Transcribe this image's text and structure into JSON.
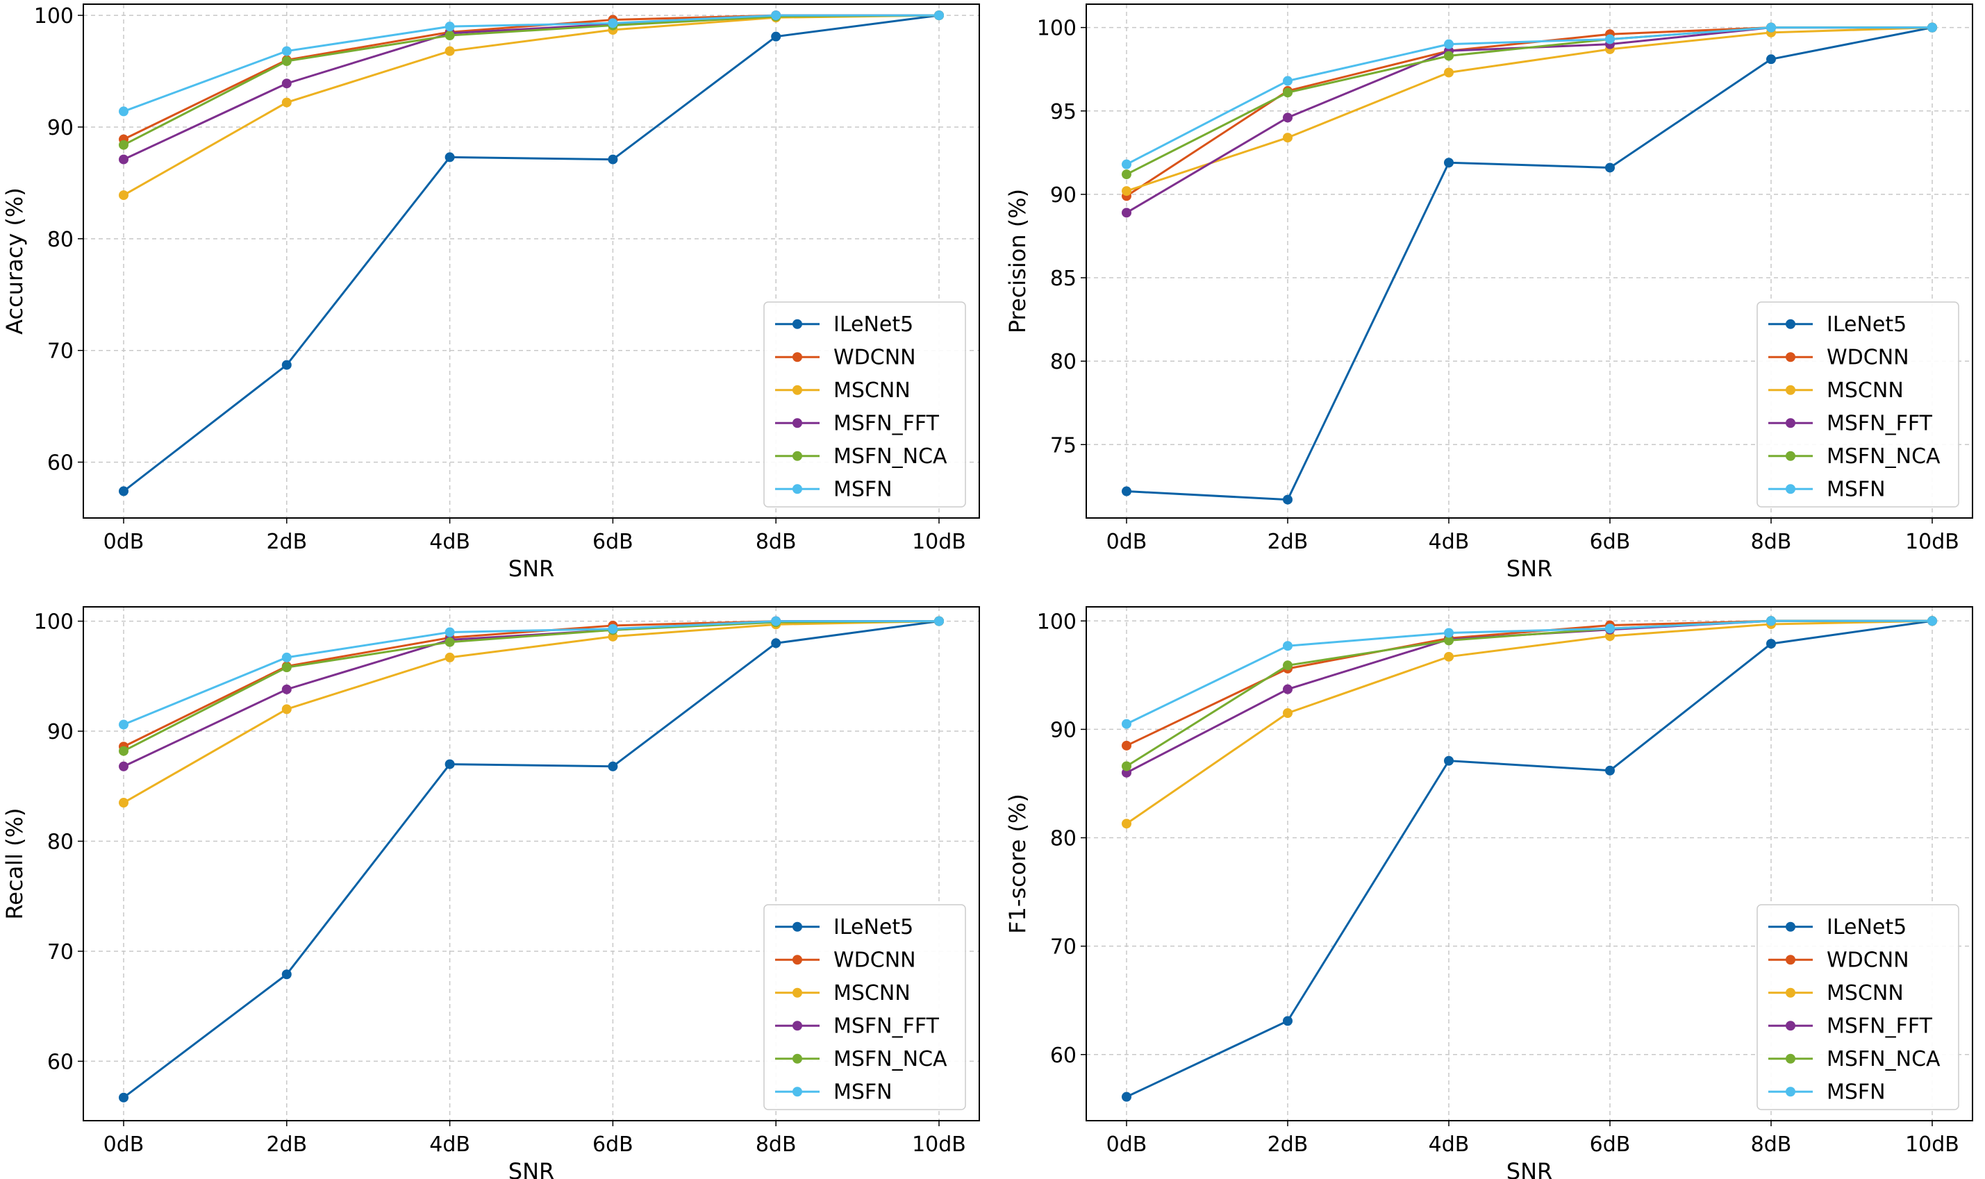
{
  "chart_data": [
    {
      "type": "line",
      "xlabel": "SNR",
      "ylabel": "Accuracy (%)",
      "categories": [
        "0dB",
        "2dB",
        "4dB",
        "6dB",
        "8dB",
        "10dB"
      ],
      "ylim": [
        55,
        101
      ],
      "yticks": [
        "60",
        "70",
        "80",
        "90",
        "100"
      ],
      "grid": true,
      "legend_position": "bottom-right",
      "series": [
        {
          "name": "ILeNet5",
          "color": "#0a62a6",
          "values": [
            57.4,
            68.7,
            87.3,
            87.1,
            98.1,
            100
          ]
        },
        {
          "name": "WDCNN",
          "color": "#d95319",
          "values": [
            88.9,
            96.0,
            98.5,
            99.6,
            100,
            100
          ]
        },
        {
          "name": "MSCNN",
          "color": "#edb120",
          "values": [
            83.9,
            92.2,
            96.8,
            98.7,
            99.8,
            100
          ]
        },
        {
          "name": "MSFN_FFT",
          "color": "#7e2f8e",
          "values": [
            87.1,
            93.9,
            98.4,
            99.2,
            100,
            100
          ]
        },
        {
          "name": "MSFN_NCA",
          "color": "#77ac30",
          "values": [
            88.4,
            95.9,
            98.2,
            99.1,
            99.9,
            100
          ]
        },
        {
          "name": "MSFN",
          "color": "#4dbeee",
          "values": [
            91.4,
            96.8,
            99.0,
            99.3,
            100,
            100
          ]
        }
      ]
    },
    {
      "type": "line",
      "xlabel": "SNR",
      "ylabel": "Precision (%)",
      "categories": [
        "0dB",
        "2dB",
        "4dB",
        "6dB",
        "8dB",
        "10dB"
      ],
      "ylim": [
        70.6,
        101.4
      ],
      "yticks": [
        "75",
        "80",
        "85",
        "90",
        "95",
        "100"
      ],
      "grid": true,
      "legend_position": "bottom-right",
      "series": [
        {
          "name": "ILeNet5",
          "color": "#0a62a6",
          "values": [
            72.2,
            71.7,
            91.9,
            91.6,
            98.1,
            100
          ]
        },
        {
          "name": "WDCNN",
          "color": "#d95319",
          "values": [
            89.9,
            96.2,
            98.6,
            99.6,
            100,
            100
          ]
        },
        {
          "name": "MSCNN",
          "color": "#edb120",
          "values": [
            90.2,
            93.4,
            97.3,
            98.7,
            99.7,
            100
          ]
        },
        {
          "name": "MSFN_FFT",
          "color": "#7e2f8e",
          "values": [
            88.9,
            94.6,
            98.6,
            99.0,
            100,
            100
          ]
        },
        {
          "name": "MSFN_NCA",
          "color": "#77ac30",
          "values": [
            91.2,
            96.1,
            98.3,
            99.3,
            100,
            100
          ]
        },
        {
          "name": "MSFN",
          "color": "#4dbeee",
          "values": [
            91.8,
            96.8,
            99.0,
            99.3,
            100,
            100
          ]
        }
      ]
    },
    {
      "type": "line",
      "xlabel": "SNR",
      "ylabel": "Recall (%)",
      "categories": [
        "0dB",
        "2dB",
        "4dB",
        "6dB",
        "8dB",
        "10dB"
      ],
      "ylim": [
        54.6,
        101.3
      ],
      "yticks": [
        "60",
        "70",
        "80",
        "90",
        "100"
      ],
      "grid": true,
      "legend_position": "bottom-right",
      "series": [
        {
          "name": "ILeNet5",
          "color": "#0a62a6",
          "values": [
            56.7,
            67.9,
            87.0,
            86.8,
            98.0,
            100
          ]
        },
        {
          "name": "WDCNN",
          "color": "#d95319",
          "values": [
            88.6,
            95.9,
            98.5,
            99.6,
            100,
            100
          ]
        },
        {
          "name": "MSCNN",
          "color": "#edb120",
          "values": [
            83.5,
            92.0,
            96.7,
            98.6,
            99.7,
            100
          ]
        },
        {
          "name": "MSFN_FFT",
          "color": "#7e2f8e",
          "values": [
            86.8,
            93.8,
            98.3,
            99.2,
            100,
            100
          ]
        },
        {
          "name": "MSFN_NCA",
          "color": "#77ac30",
          "values": [
            88.2,
            95.8,
            98.1,
            99.2,
            99.9,
            100
          ]
        },
        {
          "name": "MSFN",
          "color": "#4dbeee",
          "values": [
            90.6,
            96.7,
            99.0,
            99.3,
            100,
            100
          ]
        }
      ]
    },
    {
      "type": "line",
      "xlabel": "SNR",
      "ylabel": "F1-score (%)",
      "categories": [
        "0dB",
        "2dB",
        "4dB",
        "6dB",
        "8dB",
        "10dB"
      ],
      "ylim": [
        53.9,
        101.3
      ],
      "yticks": [
        "60",
        "70",
        "80",
        "90",
        "100"
      ],
      "grid": true,
      "legend_position": "bottom-right",
      "series": [
        {
          "name": "ILeNet5",
          "color": "#0a62a6",
          "values": [
            56.1,
            63.1,
            87.1,
            86.2,
            97.9,
            100
          ]
        },
        {
          "name": "WDCNN",
          "color": "#d95319",
          "values": [
            88.5,
            95.6,
            98.4,
            99.6,
            100,
            100
          ]
        },
        {
          "name": "MSCNN",
          "color": "#edb120",
          "values": [
            81.3,
            91.5,
            96.7,
            98.6,
            99.7,
            100
          ]
        },
        {
          "name": "MSFN_FFT",
          "color": "#7e2f8e",
          "values": [
            86.0,
            93.7,
            98.3,
            99.2,
            100,
            100
          ]
        },
        {
          "name": "MSFN_NCA",
          "color": "#77ac30",
          "values": [
            86.6,
            95.9,
            98.2,
            99.3,
            100,
            100
          ]
        },
        {
          "name": "MSFN",
          "color": "#4dbeee",
          "values": [
            90.5,
            97.7,
            98.9,
            99.3,
            100,
            100
          ]
        }
      ]
    }
  ]
}
